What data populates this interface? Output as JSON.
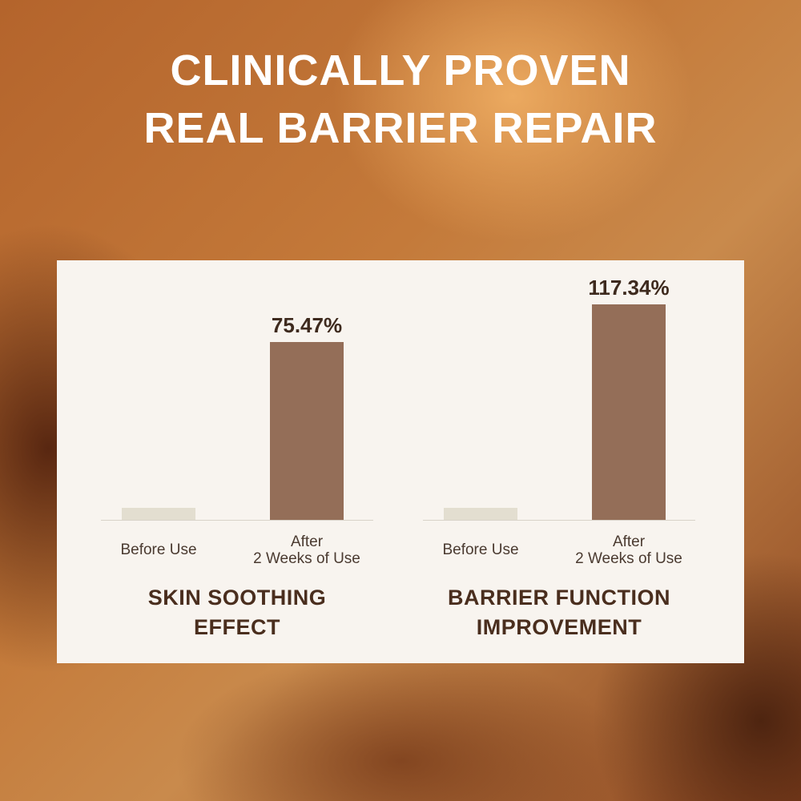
{
  "header": {
    "title_lines": [
      "CLINICALLY PROVEN",
      "REAL BARRIER REPAIR"
    ]
  },
  "colors": {
    "before_bar": "#e3ded0",
    "after_bar": "#946e58",
    "panel": "#f8f4ef",
    "text_dark": "#3e2a1e"
  },
  "chart_data": [
    {
      "type": "bar",
      "title_lines": [
        "SKIN SOOTHING",
        "EFFECT"
      ],
      "categories": [
        [
          "Before Use"
        ],
        [
          "After",
          "2 Weeks of Use"
        ]
      ],
      "values": [
        5,
        75.47
      ],
      "value_labels": [
        "",
        "75.47%"
      ],
      "ylim": [
        0,
        102
      ],
      "grid": false
    },
    {
      "type": "bar",
      "title_lines": [
        "BARRIER FUNCTION",
        "IMPROVEMENT"
      ],
      "categories": [
        [
          "Before Use"
        ],
        [
          "After",
          "2 Weeks of Use"
        ]
      ],
      "values": [
        6.5,
        117.34
      ],
      "value_labels": [
        "",
        "117.34%"
      ],
      "ylim": [
        0,
        131
      ],
      "grid": false
    }
  ]
}
